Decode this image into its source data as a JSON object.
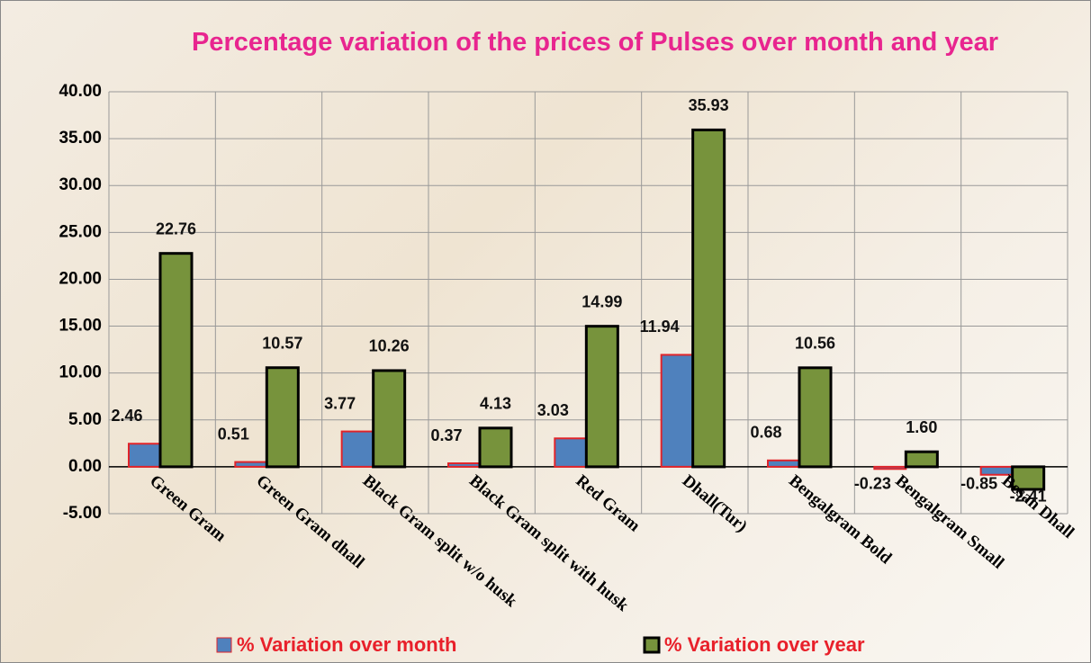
{
  "chart_data": {
    "type": "bar",
    "title": "Percentage variation of the prices of Pulses over month and year",
    "categories": [
      "Green Gram",
      "Green Gram dhall",
      "Black Gram split w/o husk",
      "Black Gram split with husk",
      "Red Gram",
      "Dhall(Tur)",
      "Bengalgram Bold",
      "Bengalgram Small",
      "Besan Dhall"
    ],
    "series": [
      {
        "name": "% Variation over month",
        "color": "#4f81bd",
        "border": "#e0242a",
        "values": [
          2.46,
          0.51,
          3.77,
          0.37,
          3.03,
          11.94,
          0.68,
          -0.23,
          -0.85
        ],
        "value_labels": [
          "2.46",
          "0.51",
          "3.77",
          "0.37",
          "3.03",
          "11.94",
          "0.68",
          "-0.23",
          "-0.85"
        ]
      },
      {
        "name": "% Variation over year",
        "color": "#77933c",
        "border": "#000000",
        "values": [
          22.76,
          10.57,
          10.26,
          4.13,
          14.99,
          35.93,
          10.56,
          1.6,
          -2.41
        ],
        "value_labels": [
          "22.76",
          "10.57",
          "10.26",
          "4.13",
          "14.99",
          "35.93",
          "10.56",
          "1.60",
          "-2.41"
        ]
      }
    ],
    "ylim": [
      -5,
      40
    ],
    "yticks": [
      {
        "value": -5,
        "label": "-5.00"
      },
      {
        "value": 0,
        "label": "0.00"
      },
      {
        "value": 5,
        "label": "5.00"
      },
      {
        "value": 10,
        "label": "10.00"
      },
      {
        "value": 15,
        "label": "15.00"
      },
      {
        "value": 20,
        "label": "20.00"
      },
      {
        "value": 25,
        "label": "25.00"
      },
      {
        "value": 30,
        "label": "30.00"
      },
      {
        "value": 35,
        "label": "35.00"
      },
      {
        "value": 40,
        "label": "40.00"
      }
    ],
    "grid": true,
    "legend": "bottom"
  }
}
